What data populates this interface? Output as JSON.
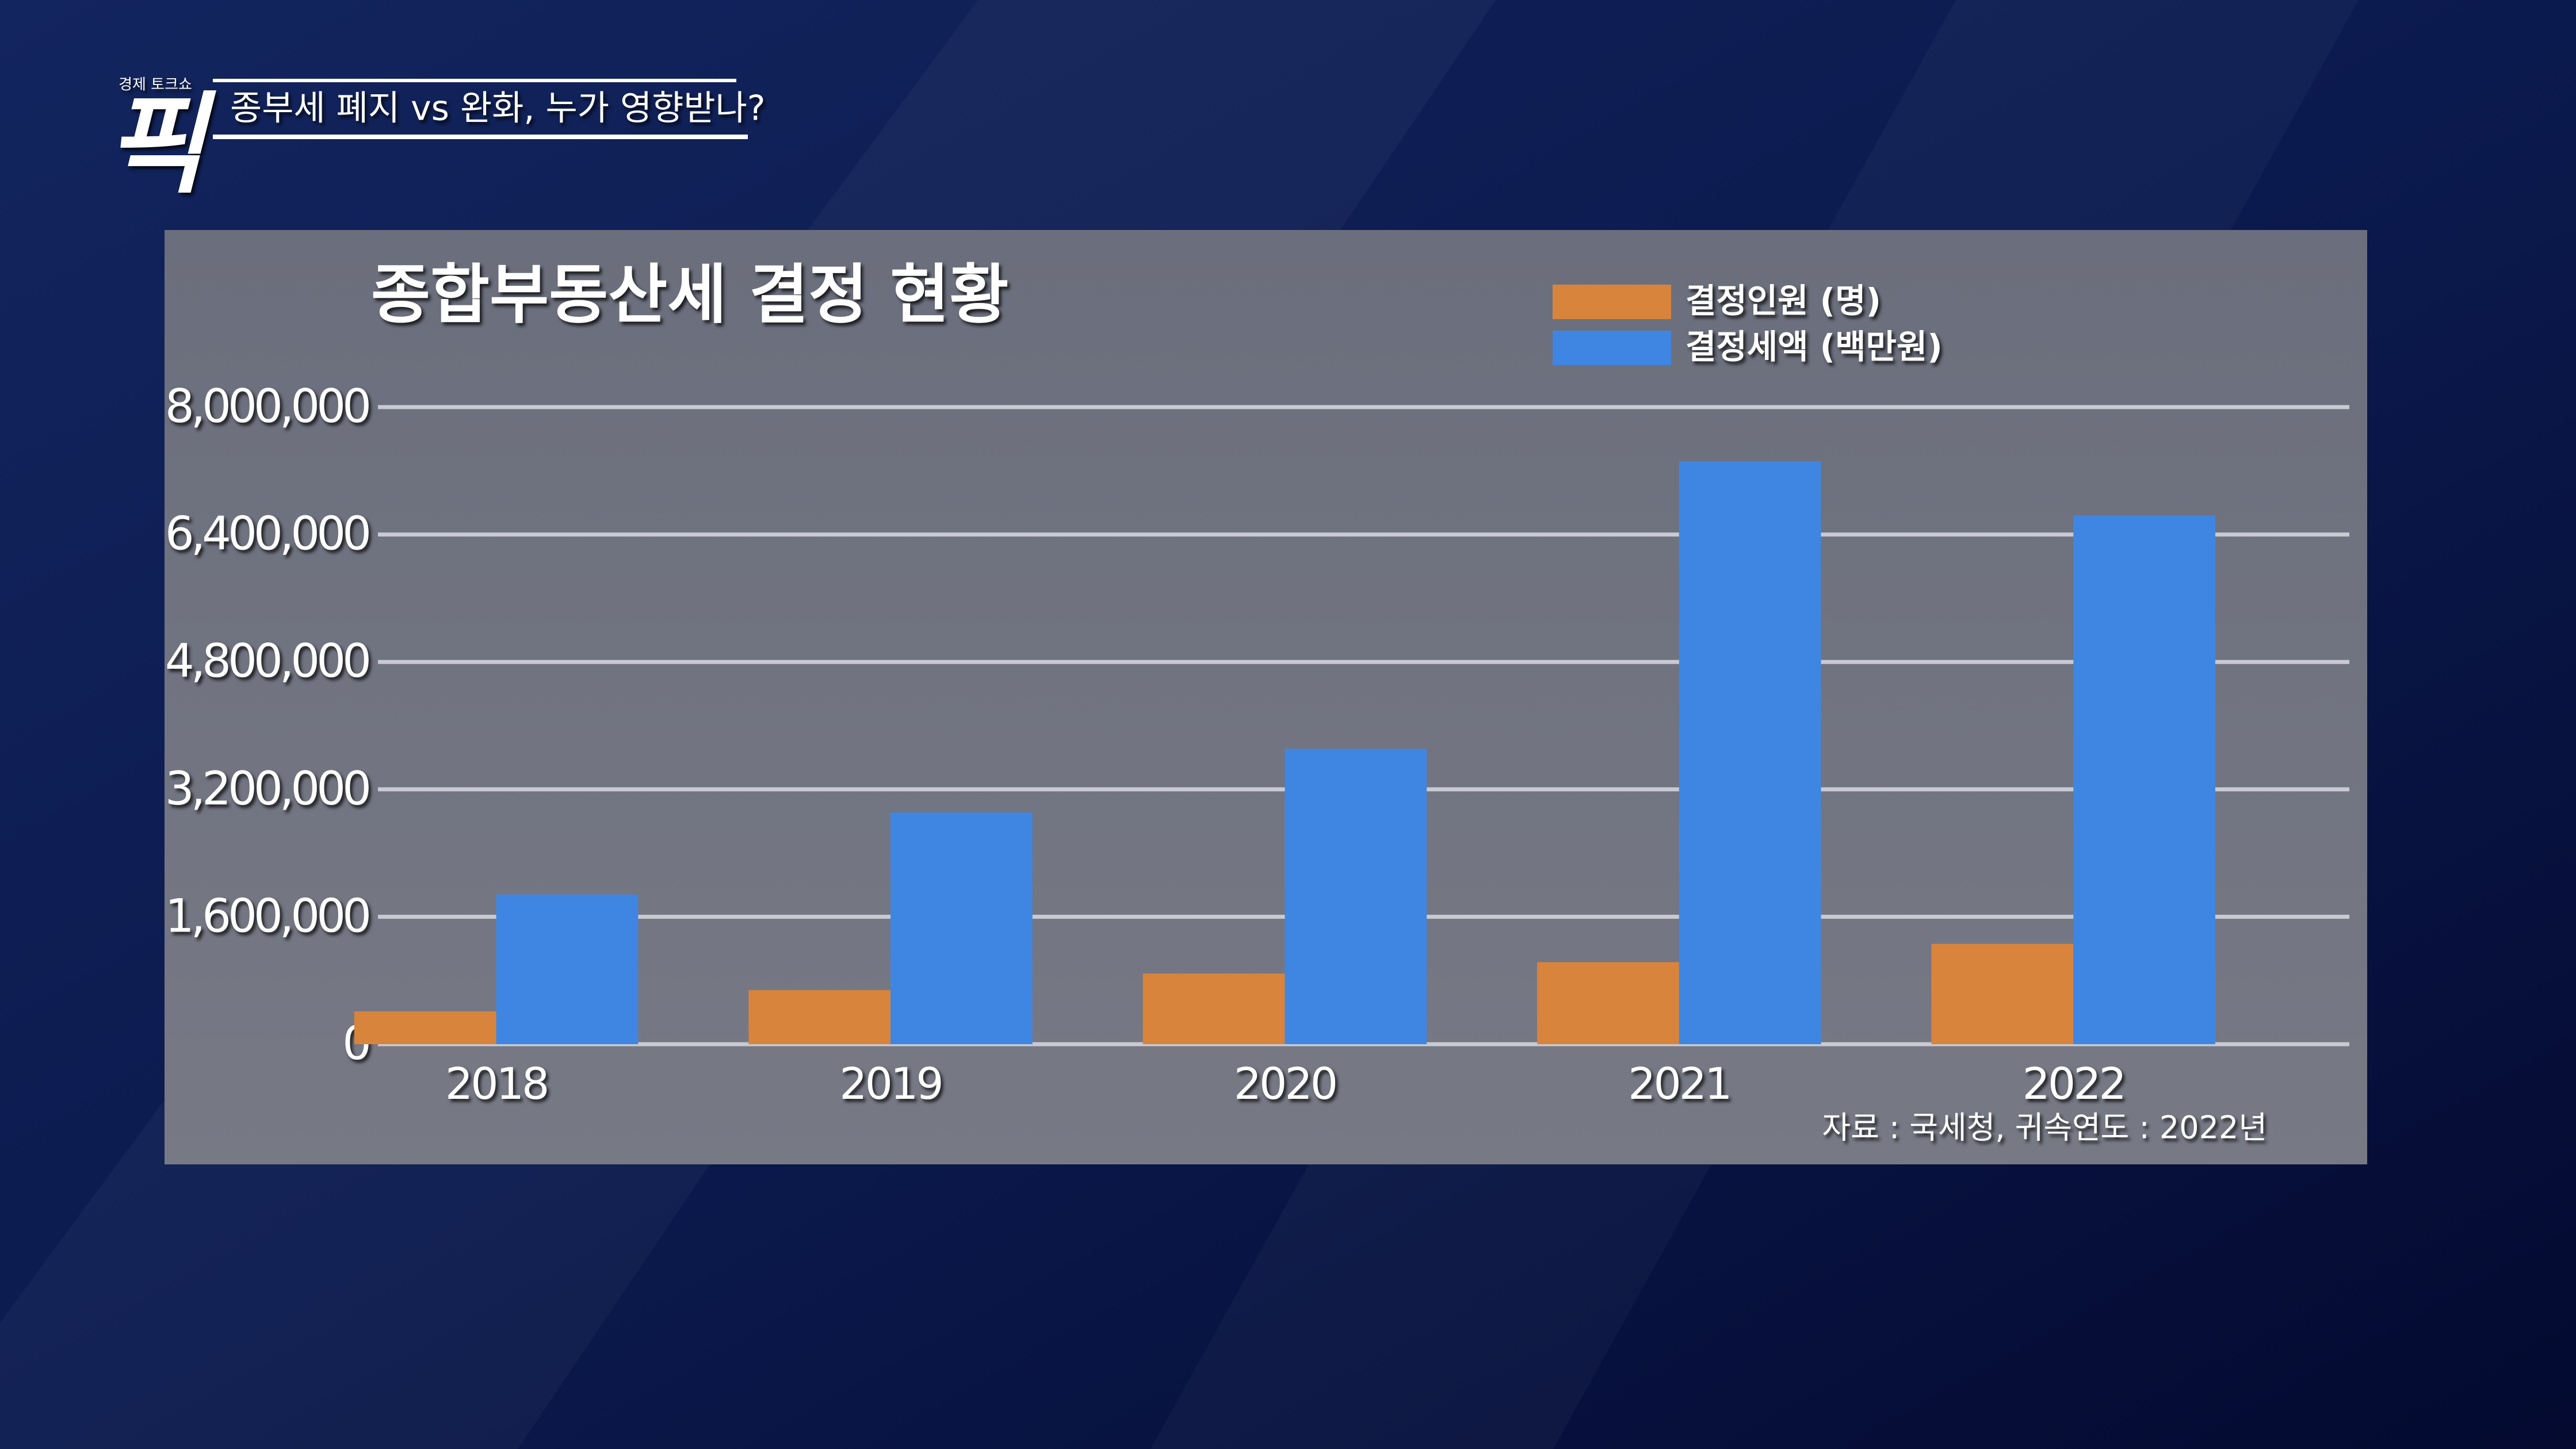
{
  "header": {
    "show_name": "경제 토크쇼",
    "logo": "픽",
    "headline": "종부세 폐지 vs 완화, 누가 영향받나?"
  },
  "chart_data": {
    "type": "bar",
    "title": "종합부동산세 결정 현황",
    "categories": [
      "2018",
      "2019",
      "2020",
      "2021",
      "2022"
    ],
    "series": [
      {
        "name": "결정인원 (명)",
        "color": "#d8843c",
        "values": [
          412000,
          680000,
          887000,
          1030000,
          1260000
        ]
      },
      {
        "name": "결정세액 (백만원)",
        "color": "#3f86e2",
        "values": [
          1880000,
          2910000,
          3710000,
          7320000,
          6640000
        ]
      }
    ],
    "ylim": [
      0,
      8000000
    ],
    "yticks": [
      {
        "value": 0,
        "label": "0"
      },
      {
        "value": 1600000,
        "label": "1,600,000"
      },
      {
        "value": 3200000,
        "label": "3,200,000"
      },
      {
        "value": 4800000,
        "label": "4,800,000"
      },
      {
        "value": 6400000,
        "label": "6,400,000"
      },
      {
        "value": 8000000,
        "label": "8,000,000"
      }
    ],
    "grid": true,
    "legend": "top-right",
    "source": "자료 : 국세청, 귀속연도 : 2022년"
  }
}
